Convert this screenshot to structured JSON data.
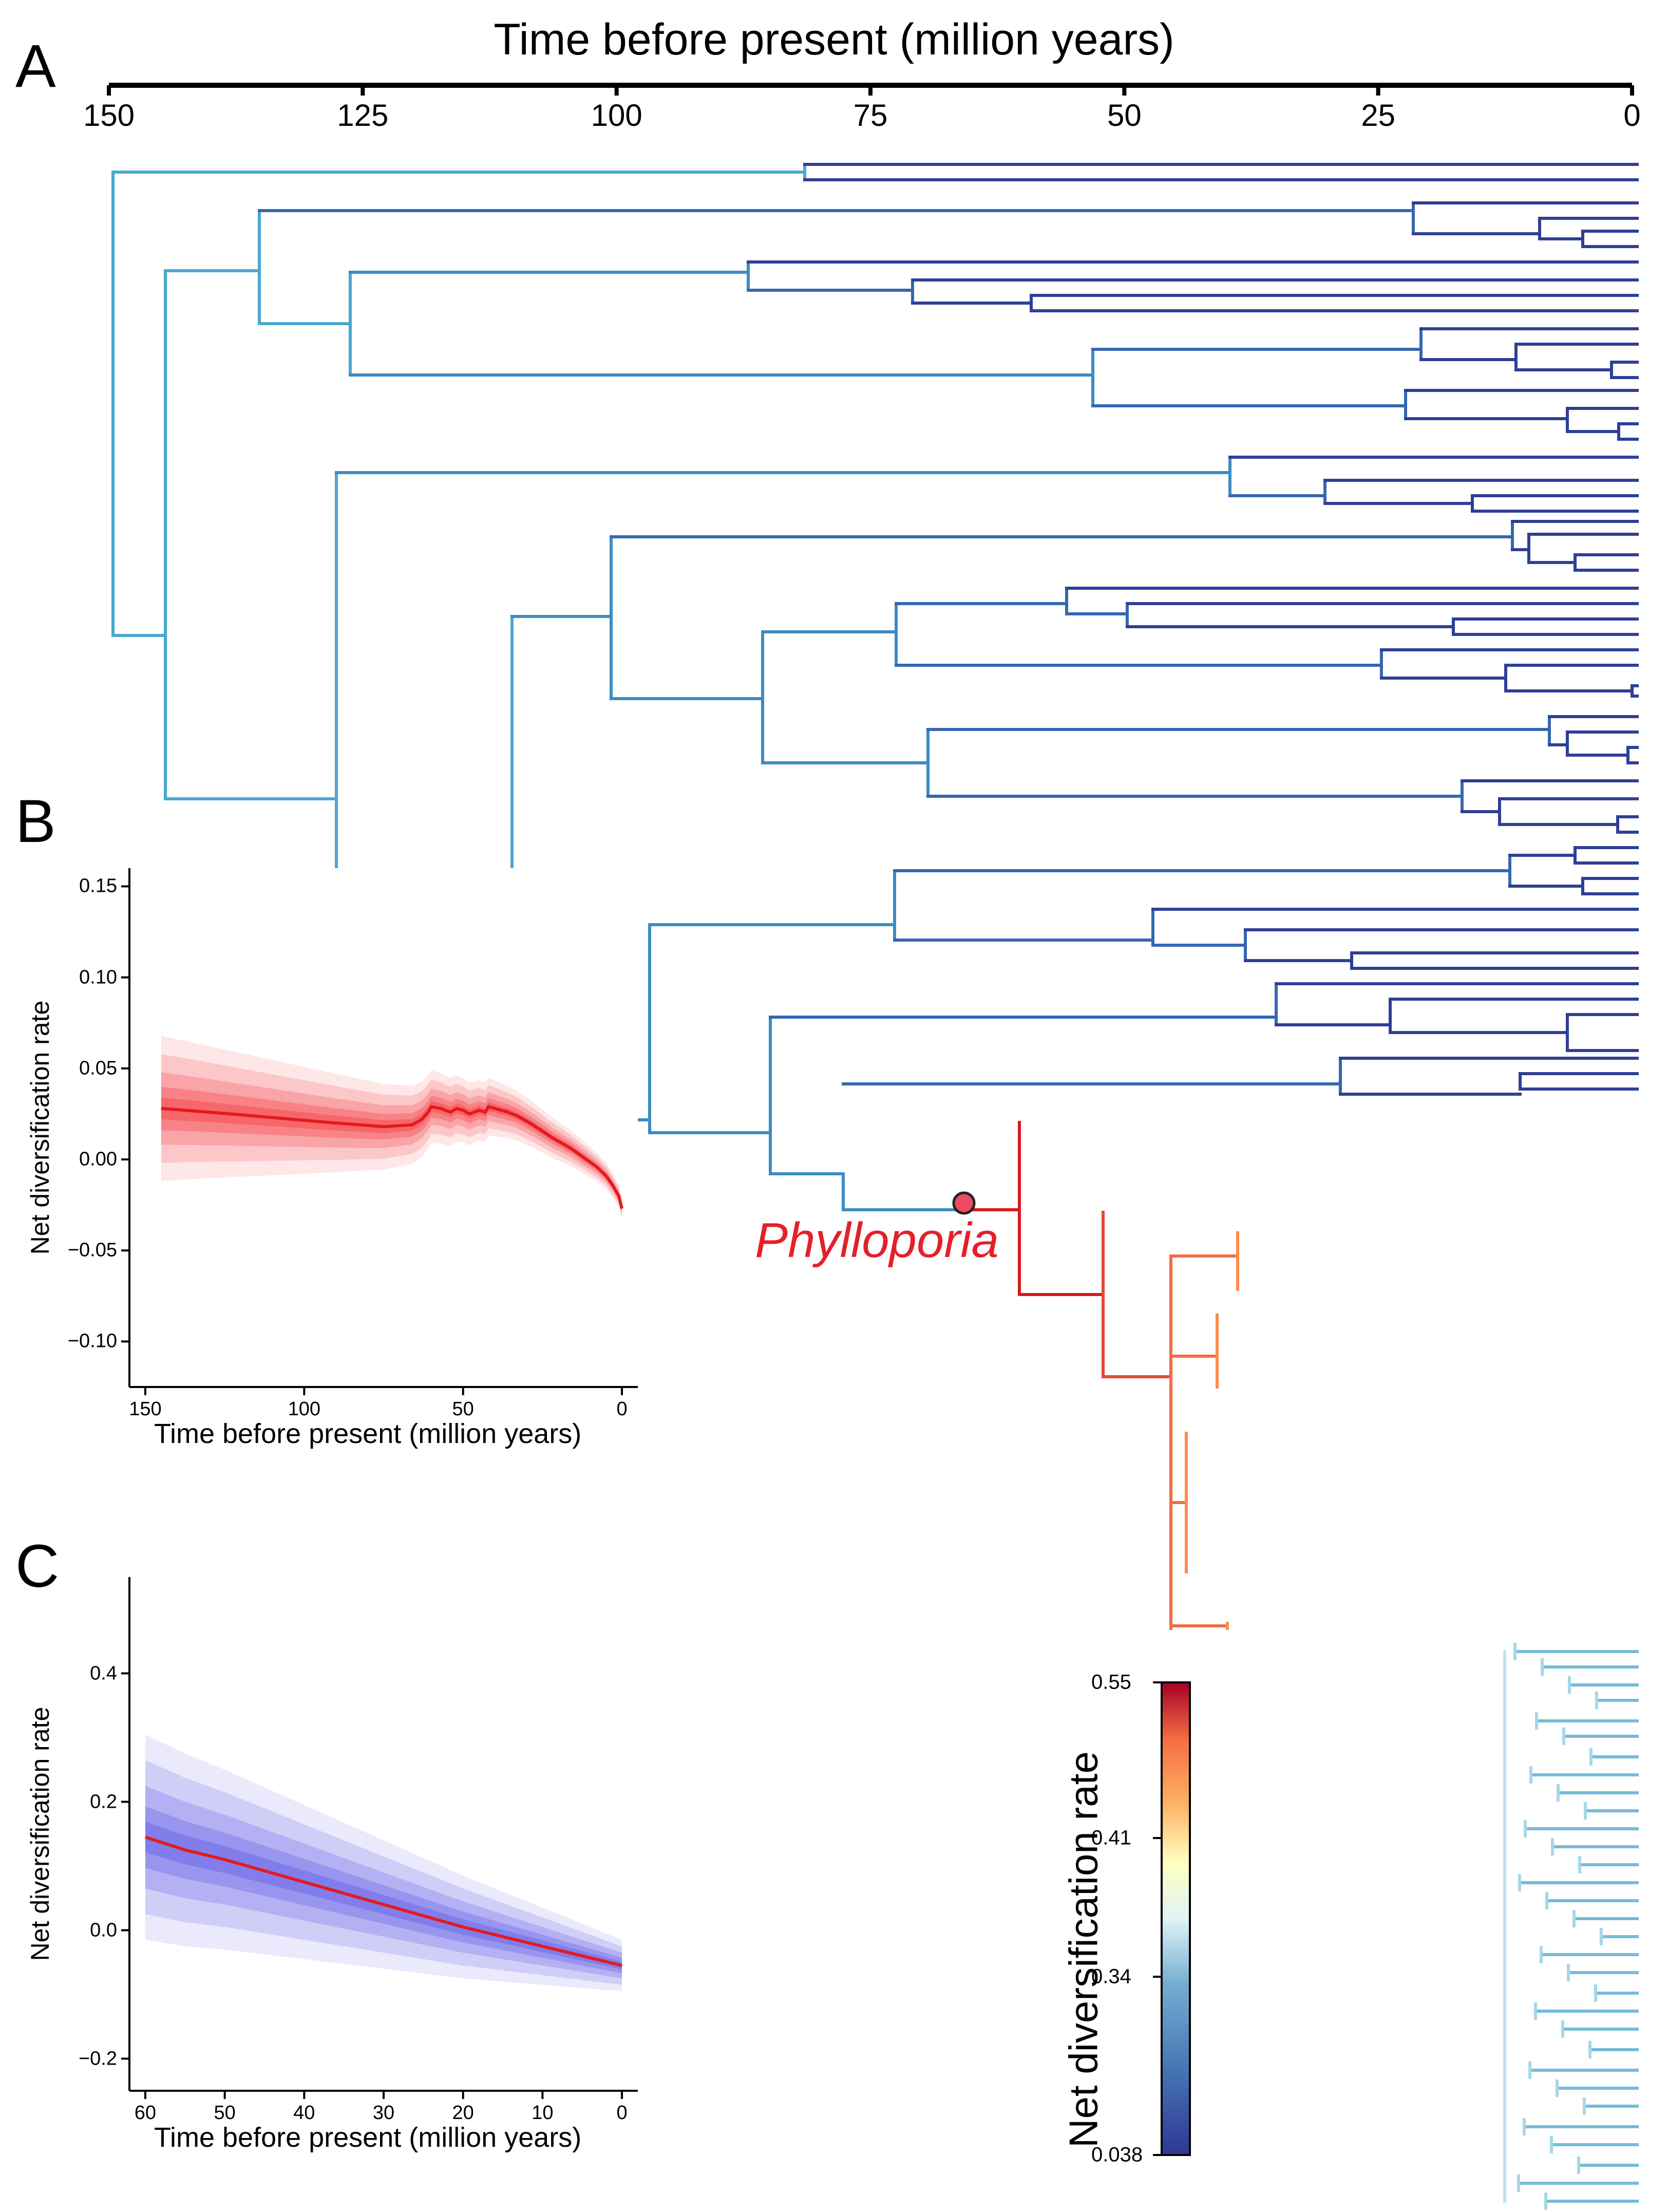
{
  "panels": {
    "a": "A",
    "b": "B",
    "c": "C"
  },
  "tree": {
    "title": "Time before present (million years)",
    "ticks": [
      "150",
      "125",
      "100",
      "75",
      "50",
      "25",
      "0"
    ],
    "tick_values": [
      150,
      125,
      100,
      75,
      50,
      25,
      0
    ],
    "clade_label": "Phylloporia",
    "legend_title": "Net diversification rate",
    "legend_ticks": [
      "0.55",
      "0.41",
      "0.34",
      "0.038"
    ],
    "colors": {
      "background_rate": "#3a52a8",
      "root_rate": "#4fa6cf",
      "high_rate": "#d7191c",
      "mid_rate": "#fee08b",
      "tip_rate": "#6fb9d6",
      "node_marker": "#ee4b63"
    }
  },
  "chart_data": [
    {
      "type": "line",
      "title": "",
      "xlabel": "Time before present (million years)",
      "ylabel": "Net diversification rate",
      "x_ticks": [
        "150",
        "100",
        "50",
        "0"
      ],
      "y_ticks": [
        "0.15",
        "0.10",
        "0.05",
        "0.00",
        "−0.05",
        "−0.10"
      ],
      "xlim": [
        155,
        -5
      ],
      "ylim": [
        -0.125,
        0.16
      ],
      "series": [
        {
          "name": "mean rate",
          "color": "#e41a1c",
          "x": [
            145,
            130,
            110,
            90,
            75,
            66,
            63,
            61,
            60,
            57,
            54,
            52,
            50,
            48,
            45,
            43,
            42,
            40,
            38,
            36,
            33,
            28,
            22,
            16,
            12,
            8,
            5,
            3,
            1,
            0
          ],
          "y": [
            0.028,
            0.026,
            0.023,
            0.02,
            0.018,
            0.019,
            0.022,
            0.026,
            0.029,
            0.028,
            0.026,
            0.028,
            0.027,
            0.025,
            0.027,
            0.026,
            0.029,
            0.028,
            0.027,
            0.026,
            0.024,
            0.019,
            0.012,
            0.006,
            0.001,
            -0.004,
            -0.009,
            -0.014,
            -0.02,
            -0.027
          ]
        }
      ]
    },
    {
      "type": "line",
      "title": "",
      "xlabel": "Time before present (million years)",
      "ylabel": "Net diversification rate",
      "x_ticks": [
        "60",
        "50",
        "40",
        "30",
        "20",
        "10",
        "0"
      ],
      "y_ticks": [
        "0.4",
        "0.2",
        "0.0",
        "−0.2"
      ],
      "xlim": [
        62,
        -2
      ],
      "ylim": [
        -0.25,
        0.55
      ],
      "series": [
        {
          "name": "mean rate",
          "color": "#e41a1c",
          "x": [
            60,
            55,
            50,
            40,
            30,
            20,
            10,
            0
          ],
          "y": [
            0.145,
            0.125,
            0.11,
            0.075,
            0.04,
            0.005,
            -0.025,
            -0.055
          ]
        }
      ]
    }
  ]
}
